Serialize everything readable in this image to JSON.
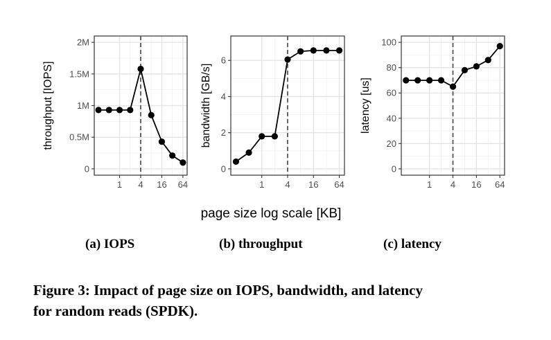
{
  "figure": {
    "shared_xlabel": "page size log scale [KB]",
    "caption_line1": "Figure 3: Impact of page size on IOPS, bandwidth, and latency",
    "caption_line2": "for random reads (SPDK).",
    "subcaptions": [
      "(a) IOPS",
      "(b) throughput",
      "(c) latency"
    ]
  },
  "chart_data": [
    {
      "type": "line",
      "xlabel": "page size log scale [KB]",
      "ylabel": "throughput [IOPS]",
      "x_scale": "log2",
      "x": [
        0.25,
        0.5,
        1,
        2,
        4,
        8,
        16,
        32,
        64
      ],
      "x_ticks": [
        1,
        4,
        16,
        64
      ],
      "x_tick_labels": [
        "1",
        "4",
        "16",
        "64"
      ],
      "y": [
        930000,
        930000,
        930000,
        930000,
        1580000,
        850000,
        430000,
        210000,
        100000
      ],
      "y_ticks": [
        0,
        500000,
        1000000,
        1500000,
        2000000
      ],
      "y_tick_labels": [
        "0",
        "0.5M",
        "1M",
        "1.5M",
        "2M"
      ],
      "ylim": [
        0,
        2000000
      ],
      "vline_x": 4,
      "grid": true,
      "color": "#000000"
    },
    {
      "type": "line",
      "xlabel": "page size log scale [KB]",
      "ylabel": "bandwidth [GB/s]",
      "x_scale": "log2",
      "x": [
        0.25,
        0.5,
        1,
        2,
        4,
        8,
        16,
        32,
        64
      ],
      "x_ticks": [
        1,
        4,
        16,
        64
      ],
      "x_tick_labels": [
        "1",
        "4",
        "16",
        "64"
      ],
      "y": [
        0.4,
        0.9,
        1.8,
        1.8,
        6.05,
        6.5,
        6.55,
        6.55,
        6.55
      ],
      "y_ticks": [
        0,
        2,
        4,
        6
      ],
      "y_tick_labels": [
        "0",
        "2",
        "4",
        "6"
      ],
      "ylim": [
        0,
        7
      ],
      "vline_x": 4,
      "grid": true,
      "color": "#000000"
    },
    {
      "type": "line",
      "xlabel": "page size log scale [KB]",
      "ylabel": "latency [us]",
      "x_scale": "log2",
      "x": [
        0.25,
        0.5,
        1,
        2,
        4,
        8,
        16,
        32,
        64
      ],
      "x_ticks": [
        1,
        4,
        16,
        64
      ],
      "x_tick_labels": [
        "1",
        "4",
        "16",
        "64"
      ],
      "y": [
        70,
        70,
        70,
        70,
        65,
        78,
        81,
        86,
        97
      ],
      "y_ticks": [
        0,
        20,
        40,
        60,
        80,
        100
      ],
      "y_tick_labels": [
        "0",
        "20",
        "40",
        "60",
        "80",
        "100"
      ],
      "ylim": [
        0,
        100
      ],
      "vline_x": 4,
      "grid": true,
      "color": "#000000"
    }
  ]
}
